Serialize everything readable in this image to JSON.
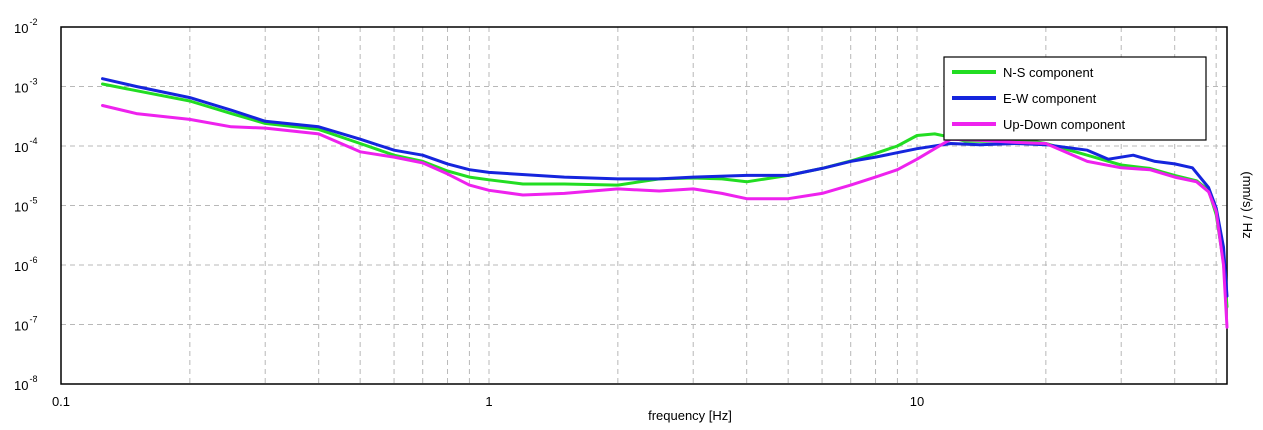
{
  "chart_data": {
    "type": "line",
    "xlabel": "frequency [Hz]",
    "ylabel": "(mm/s)  / Hz",
    "x_scale": "log",
    "y_scale": "log",
    "xlim": [
      0.1,
      53
    ],
    "ylim": [
      1e-08,
      0.01
    ],
    "grid": true,
    "legend_position": "top-right",
    "x_ticks": [
      {
        "value": 0.1,
        "label": "0.1"
      },
      {
        "value": 1,
        "label": "1"
      },
      {
        "value": 10,
        "label": "10"
      }
    ],
    "y_ticks": [
      {
        "value": 0.01,
        "base": "10",
        "exp": "-2"
      },
      {
        "value": 0.001,
        "base": "10",
        "exp": "-3"
      },
      {
        "value": 0.0001,
        "base": "10",
        "exp": "-4"
      },
      {
        "value": 1e-05,
        "base": "10",
        "exp": "-5"
      },
      {
        "value": 1e-06,
        "base": "10",
        "exp": "-6"
      },
      {
        "value": 1e-07,
        "base": "10",
        "exp": "-7"
      },
      {
        "value": 1e-08,
        "base": "10",
        "exp": "-8"
      }
    ],
    "series": [
      {
        "name": "N-S component",
        "color": "#22dd22",
        "points": [
          [
            0.125,
            0.0011
          ],
          [
            0.15,
            0.00085
          ],
          [
            0.2,
            0.00057
          ],
          [
            0.25,
            0.00035
          ],
          [
            0.3,
            0.00024
          ],
          [
            0.4,
            0.00019
          ],
          [
            0.5,
            0.00011
          ],
          [
            0.6,
            7e-05
          ],
          [
            0.7,
            5.5e-05
          ],
          [
            0.8,
            3.8e-05
          ],
          [
            0.9,
            3e-05
          ],
          [
            1,
            2.7e-05
          ],
          [
            1.2,
            2.3e-05
          ],
          [
            1.5,
            2.3e-05
          ],
          [
            2,
            2.2e-05
          ],
          [
            2.5,
            2.8e-05
          ],
          [
            3,
            2.9e-05
          ],
          [
            3.5,
            2.8e-05
          ],
          [
            4,
            2.5e-05
          ],
          [
            5,
            3.2e-05
          ],
          [
            6,
            4.2e-05
          ],
          [
            7,
            5.6e-05
          ],
          [
            8,
            7.5e-05
          ],
          [
            9,
            0.0001
          ],
          [
            10,
            0.00015
          ],
          [
            11,
            0.00016
          ],
          [
            12,
            0.00014
          ],
          [
            13,
            0.00012
          ],
          [
            15,
            0.00012
          ],
          [
            18,
            0.000125
          ],
          [
            20,
            0.00011
          ],
          [
            25,
            7e-05
          ],
          [
            30,
            4.8e-05
          ],
          [
            35,
            4.2e-05
          ],
          [
            40,
            3.2e-05
          ],
          [
            45,
            2.6e-05
          ],
          [
            48,
            1.8e-05
          ],
          [
            50,
            7e-06
          ],
          [
            52,
            1.1e-06
          ],
          [
            53,
            2e-07
          ]
        ]
      },
      {
        "name": "E-W component",
        "color": "#1525dd",
        "points": [
          [
            0.125,
            0.00135
          ],
          [
            0.15,
            0.001
          ],
          [
            0.2,
            0.00065
          ],
          [
            0.25,
            0.0004
          ],
          [
            0.3,
            0.00026
          ],
          [
            0.4,
            0.00021
          ],
          [
            0.5,
            0.00013
          ],
          [
            0.6,
            8.5e-05
          ],
          [
            0.7,
            7e-05
          ],
          [
            0.8,
            5e-05
          ],
          [
            0.9,
            4e-05
          ],
          [
            1,
            3.6e-05
          ],
          [
            1.5,
            3e-05
          ],
          [
            2,
            2.8e-05
          ],
          [
            2.5,
            2.8e-05
          ],
          [
            3,
            3e-05
          ],
          [
            4,
            3.2e-05
          ],
          [
            5,
            3.2e-05
          ],
          [
            6,
            4.2e-05
          ],
          [
            7,
            5.5e-05
          ],
          [
            8,
            6.5e-05
          ],
          [
            10,
            9e-05
          ],
          [
            12,
            0.00011
          ],
          [
            14,
            0.000105
          ],
          [
            17,
            0.00011
          ],
          [
            20,
            0.000105
          ],
          [
            25,
            8.5e-05
          ],
          [
            28,
            6e-05
          ],
          [
            32,
            7e-05
          ],
          [
            36,
            5.5e-05
          ],
          [
            40,
            5e-05
          ],
          [
            44,
            4.3e-05
          ],
          [
            48,
            2e-05
          ],
          [
            50,
            9e-06
          ],
          [
            52,
            2e-06
          ],
          [
            53,
            3e-07
          ]
        ]
      },
      {
        "name": "Up-Down component",
        "color": "#ee22ee",
        "points": [
          [
            0.125,
            0.00048
          ],
          [
            0.15,
            0.00035
          ],
          [
            0.2,
            0.00028
          ],
          [
            0.25,
            0.00021
          ],
          [
            0.3,
            0.0002
          ],
          [
            0.4,
            0.00016
          ],
          [
            0.5,
            8e-05
          ],
          [
            0.6,
            6.5e-05
          ],
          [
            0.7,
            5.2e-05
          ],
          [
            0.8,
            3.4e-05
          ],
          [
            0.9,
            2.2e-05
          ],
          [
            1,
            1.8e-05
          ],
          [
            1.2,
            1.5e-05
          ],
          [
            1.5,
            1.6e-05
          ],
          [
            2,
            1.9e-05
          ],
          [
            2.5,
            1.75e-05
          ],
          [
            3,
            1.9e-05
          ],
          [
            3.5,
            1.6e-05
          ],
          [
            4,
            1.3e-05
          ],
          [
            5,
            1.3e-05
          ],
          [
            6,
            1.6e-05
          ],
          [
            7,
            2.2e-05
          ],
          [
            8,
            3e-05
          ],
          [
            9,
            4e-05
          ],
          [
            10,
            6e-05
          ],
          [
            11,
            9e-05
          ],
          [
            12,
            0.00013
          ],
          [
            14,
            0.000125
          ],
          [
            17,
            0.000115
          ],
          [
            20,
            0.00011
          ],
          [
            25,
            5.5e-05
          ],
          [
            30,
            4.3e-05
          ],
          [
            35,
            4e-05
          ],
          [
            40,
            3e-05
          ],
          [
            45,
            2.5e-05
          ],
          [
            48,
            1.7e-05
          ],
          [
            50,
            8e-06
          ],
          [
            52,
            1e-06
          ],
          [
            53,
            9e-08
          ]
        ]
      }
    ]
  }
}
